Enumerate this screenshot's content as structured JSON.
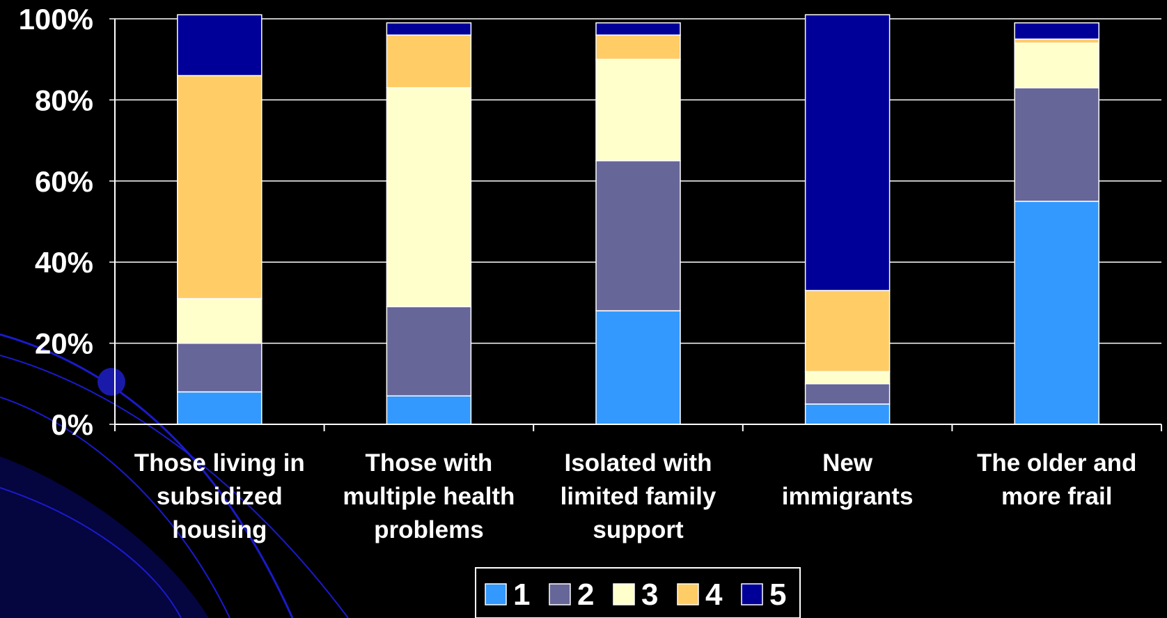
{
  "chart_data": {
    "type": "bar",
    "stacked": true,
    "percent_stacked": true,
    "categories": [
      [
        "Those living in",
        "subsidized",
        "housing"
      ],
      [
        "Those with",
        "multiple health",
        "problems"
      ],
      [
        "Isolated with",
        "limited family",
        "support"
      ],
      [
        "New",
        "immigrants"
      ],
      [
        "The older and",
        "more frail"
      ]
    ],
    "series": [
      {
        "name": "1",
        "color": "#3399ff",
        "values": [
          8,
          7,
          28,
          5,
          55
        ]
      },
      {
        "name": "2",
        "color": "#666699",
        "values": [
          12,
          22,
          37,
          5,
          28
        ]
      },
      {
        "name": "3",
        "color": "#ffffcc",
        "values": [
          11,
          54,
          25,
          3,
          11
        ]
      },
      {
        "name": "4",
        "color": "#ffcc66",
        "values": [
          55,
          13,
          6,
          20,
          1
        ]
      },
      {
        "name": "5",
        "color": "#000099",
        "values": [
          15,
          3,
          3,
          68,
          4
        ]
      }
    ],
    "ylim": [
      0,
      100
    ],
    "yticks": [
      "0%",
      "20%",
      "40%",
      "60%",
      "80%",
      "100%"
    ],
    "grid": true,
    "legend_position": "bottom"
  },
  "colors": {
    "background": "#000000",
    "grid": "#ffffff",
    "text": "#ffffff",
    "bar_outline": "#ffffff",
    "decor_swoosh": "#1a1acc"
  }
}
